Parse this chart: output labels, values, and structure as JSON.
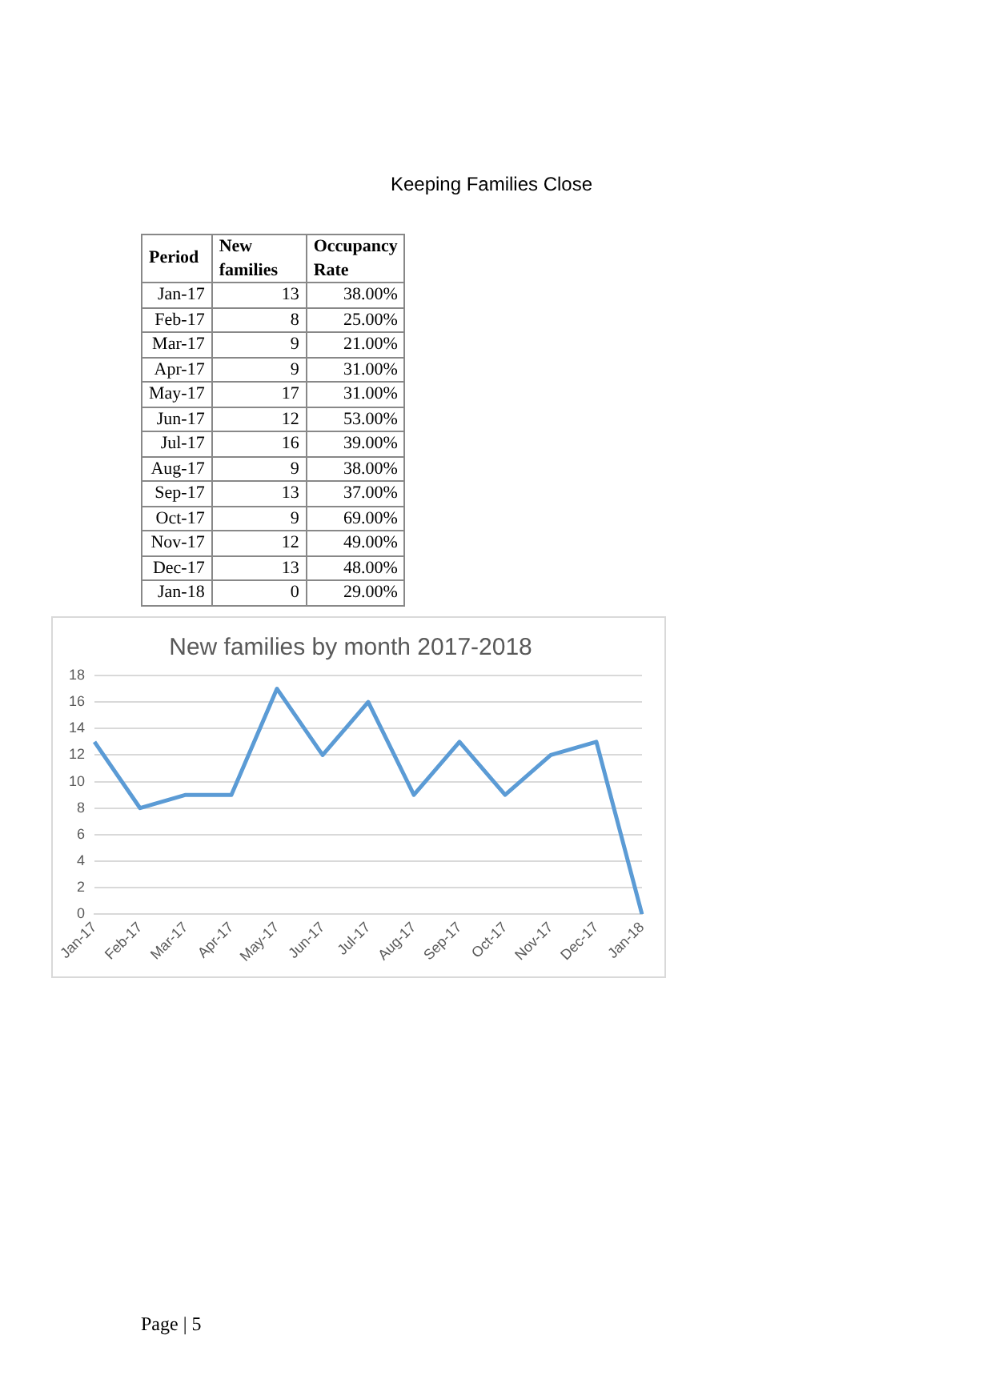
{
  "chart_data": [
    {
      "type": "other",
      "title": "Keeping Families Close",
      "xlabel": "Period",
      "categories": [
        "Jan-17",
        "Feb-17",
        "Mar-17",
        "Apr-17",
        "May-17",
        "Jun-17",
        "Jul-17",
        "Aug-17",
        "Sep-17",
        "Oct-17",
        "Nov-17",
        "Dec-17",
        "Jan-18"
      ],
      "series": [
        {
          "name": "New families",
          "values": [
            13,
            8,
            9,
            9,
            17,
            12,
            16,
            9,
            13,
            9,
            12,
            13,
            0
          ],
          "value_labels": [
            "13",
            "8",
            "9",
            "9",
            "17",
            "12",
            "16",
            "9",
            "13",
            "9",
            "12",
            "13",
            "0"
          ]
        },
        {
          "name": "Occupancy Rate",
          "values": [
            38,
            25,
            21,
            31,
            31,
            53,
            39,
            38,
            37,
            69,
            49,
            48,
            29
          ],
          "value_labels": [
            "38.00%",
            "25.00%",
            "21.00%",
            "31.00%",
            "31.00%",
            "53.00%",
            "39.00%",
            "38.00%",
            "37.00%",
            "69.00%",
            "49.00%",
            "48.00%",
            "29.00%"
          ]
        }
      ]
    },
    {
      "type": "line",
      "title": "New families by month 2017-2018",
      "categories": [
        "Jan-17",
        "Feb-17",
        "Mar-17",
        "Apr-17",
        "May-17",
        "Jun-17",
        "Jul-17",
        "Aug-17",
        "Sep-17",
        "Oct-17",
        "Nov-17",
        "Dec-17",
        "Jan-18"
      ],
      "series": [
        {
          "color": "#5b9bd5",
          "values": [
            13,
            8,
            9,
            9,
            17,
            12,
            16,
            9,
            13,
            9,
            12,
            13,
            0
          ]
        }
      ],
      "ylim": [
        0,
        18
      ],
      "yticks": [
        0,
        2,
        4,
        6,
        8,
        10,
        12,
        14,
        16,
        18
      ],
      "grid": "y",
      "marker": "none",
      "annotations": [
        "Page | 5"
      ]
    }
  ]
}
